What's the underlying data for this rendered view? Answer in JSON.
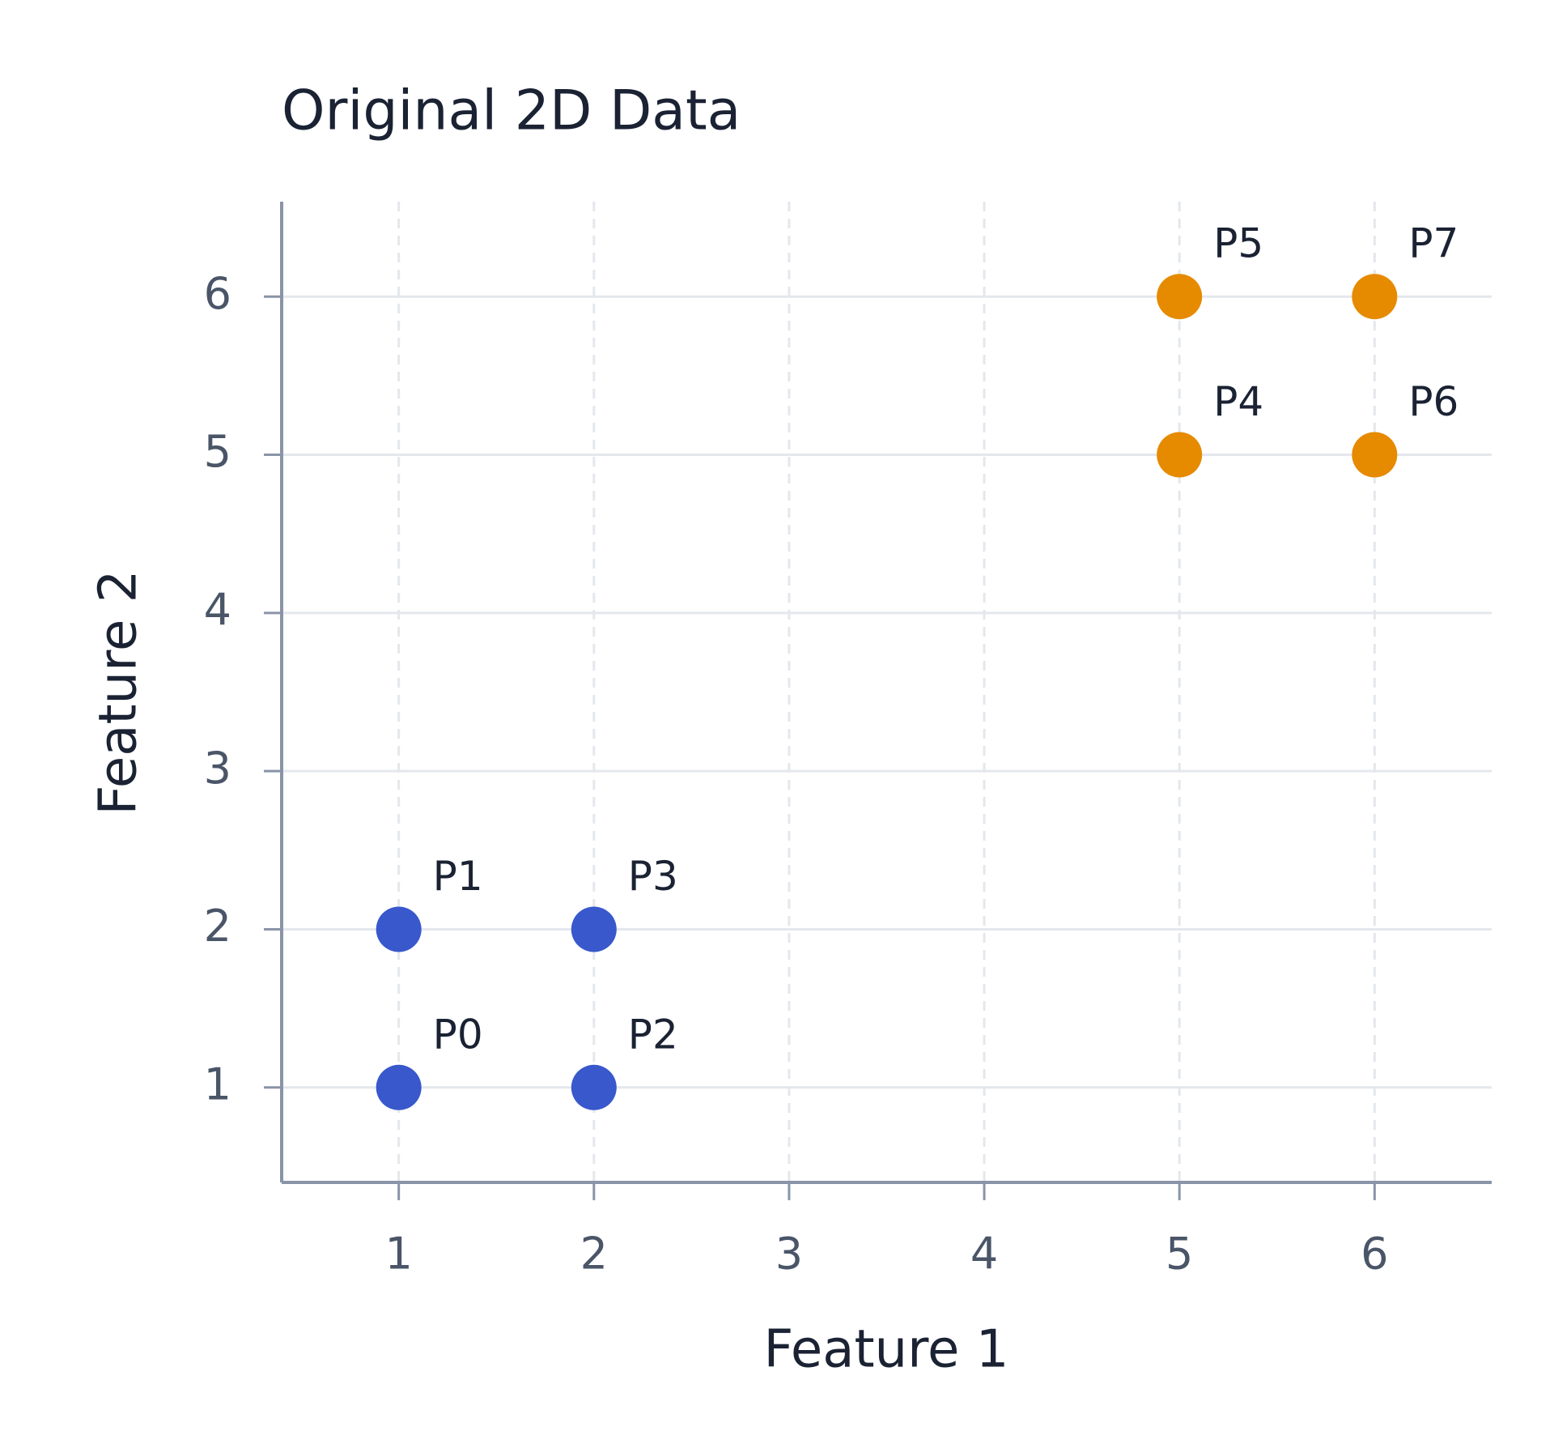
{
  "chart_data": {
    "type": "scatter",
    "title": "Original 2D Data",
    "x_label": "Feature 1",
    "y_label": "Feature 2",
    "series": [
      {
        "color": "#3858cc",
        "x": [
          1,
          1,
          2,
          2
        ],
        "y": [
          1,
          2,
          1,
          2
        ],
        "labels": [
          "P0",
          "P1",
          "P2",
          "P3"
        ]
      },
      {
        "color": "#e68a00",
        "x": [
          5,
          5,
          6,
          6
        ],
        "y": [
          5,
          6,
          5,
          6
        ],
        "labels": [
          "P4",
          "P5",
          "P6",
          "P7"
        ]
      }
    ],
    "xlim": [
      0.4,
      6.6
    ],
    "ylim": [
      0.4,
      6.6
    ],
    "xticks": [
      1,
      2,
      3,
      4,
      5,
      6
    ],
    "yticks": [
      1,
      2,
      3,
      4,
      5,
      6
    ],
    "grid": true
  }
}
